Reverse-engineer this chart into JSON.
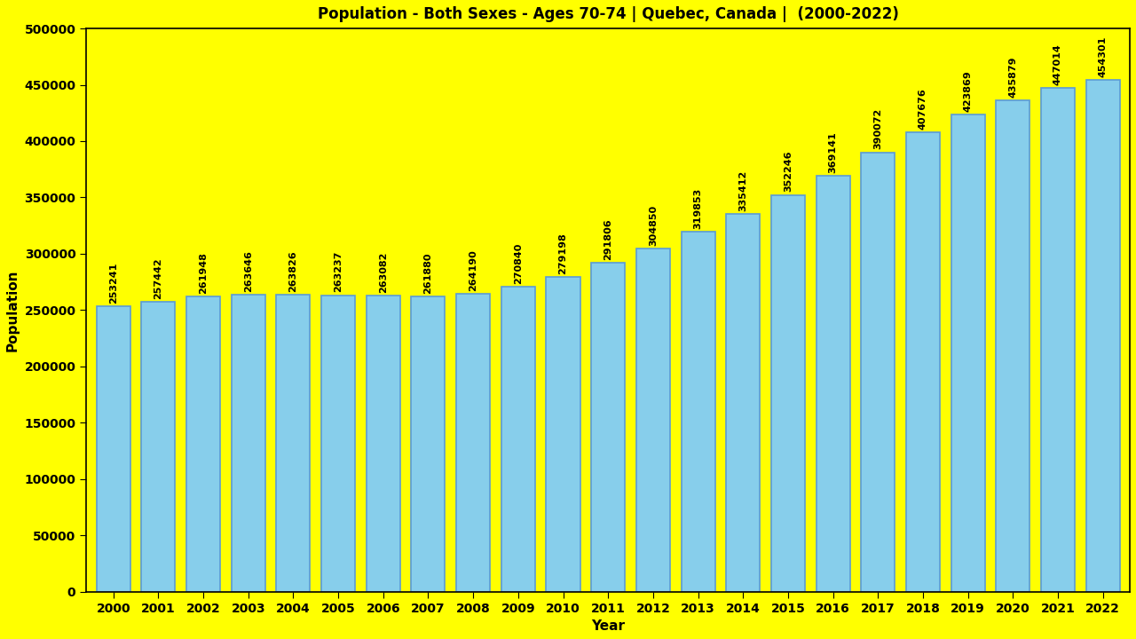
{
  "title": "Population - Both Sexes - Ages 70-74 | Quebec, Canada |  (2000-2022)",
  "xlabel": "Year",
  "ylabel": "Population",
  "background_color": "#FFFF00",
  "bar_color": "#87CEEB",
  "bar_edge_color": "#5B9BD5",
  "years": [
    2000,
    2001,
    2002,
    2003,
    2004,
    2005,
    2006,
    2007,
    2008,
    2009,
    2010,
    2011,
    2012,
    2013,
    2014,
    2015,
    2016,
    2017,
    2018,
    2019,
    2020,
    2021,
    2022
  ],
  "values": [
    253241,
    257442,
    261948,
    263646,
    263826,
    263237,
    263082,
    261880,
    264190,
    270840,
    279198,
    291806,
    304850,
    319853,
    335412,
    352246,
    369141,
    390072,
    407676,
    423869,
    435879,
    447014,
    454301
  ],
  "ylim": [
    0,
    500000
  ],
  "yticks": [
    0,
    50000,
    100000,
    150000,
    200000,
    250000,
    300000,
    350000,
    400000,
    450000,
    500000
  ],
  "title_fontsize": 12,
  "axis_label_fontsize": 11,
  "tick_fontsize": 10,
  "value_label_fontsize": 8,
  "text_color": "#000000"
}
